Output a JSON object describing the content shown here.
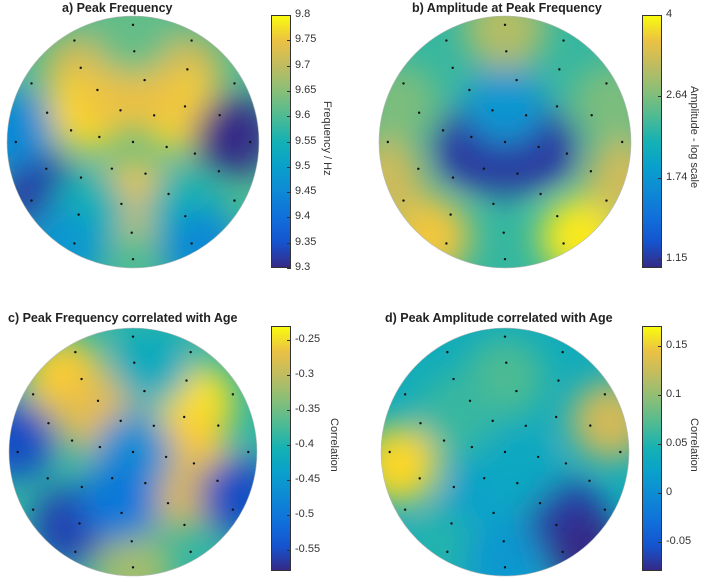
{
  "chart_data": [
    {
      "type": "heatmap",
      "title": "a) Peak Frequency",
      "colorbar_label": "Frequency / Hz",
      "colorbar_ticks": [
        "9.8",
        "9.75",
        "9.7",
        "9.65",
        "9.6",
        "9.55",
        "9.5",
        "9.45",
        "9.4",
        "9.35",
        "9.3"
      ],
      "clim": [
        9.3,
        9.8
      ],
      "colormap": "parula",
      "blobs": [
        {
          "x": -0.4,
          "y": 0.55,
          "value": 9.72
        },
        {
          "x": 0.4,
          "y": 0.55,
          "value": 9.72
        },
        {
          "x": -0.35,
          "y": 0.25,
          "value": 9.78
        },
        {
          "x": 0.35,
          "y": 0.25,
          "value": 9.78
        },
        {
          "x": -0.1,
          "y": 0.4,
          "value": 9.75
        },
        {
          "x": 0.1,
          "y": 0.4,
          "value": 9.75
        },
        {
          "x": 0.0,
          "y": -0.45,
          "value": 9.76
        },
        {
          "x": 0.0,
          "y": 0.85,
          "value": 9.62
        },
        {
          "x": -0.75,
          "y": -0.4,
          "value": 9.32
        },
        {
          "x": 0.8,
          "y": 0.05,
          "value": 9.3
        },
        {
          "x": -0.95,
          "y": 0.1,
          "value": 9.45
        },
        {
          "x": -0.35,
          "y": -0.55,
          "value": 9.55
        },
        {
          "x": 0.4,
          "y": -0.55,
          "value": 9.55
        },
        {
          "x": 0.55,
          "y": -0.85,
          "value": 9.45
        },
        {
          "x": -0.55,
          "y": -0.85,
          "value": 9.48
        }
      ]
    },
    {
      "type": "heatmap",
      "title": "b) Amplitude at Peak Frequency",
      "colorbar_label": "Amplitude - log scale",
      "colorbar_ticks": [
        "4",
        "2.64",
        "1.74",
        "1.15"
      ],
      "clim": [
        1.1,
        4.0
      ],
      "log_scale": true,
      "colormap": "parula",
      "blobs": [
        {
          "x": -0.25,
          "y": -0.05,
          "value": 1.15
        },
        {
          "x": 0.0,
          "y": -0.1,
          "value": 1.15
        },
        {
          "x": 0.25,
          "y": -0.05,
          "value": 1.15
        },
        {
          "x": 0.0,
          "y": 0.3,
          "value": 1.74
        },
        {
          "x": -0.85,
          "y": 0.3,
          "value": 2.64
        },
        {
          "x": 0.85,
          "y": 0.3,
          "value": 2.64
        },
        {
          "x": -0.6,
          "y": -0.75,
          "value": 3.6
        },
        {
          "x": 0.6,
          "y": -0.75,
          "value": 3.9
        },
        {
          "x": 0.0,
          "y": 0.9,
          "value": 3.0
        },
        {
          "x": -0.95,
          "y": -0.3,
          "value": 3.2
        },
        {
          "x": 0.95,
          "y": -0.3,
          "value": 3.2
        }
      ]
    },
    {
      "type": "heatmap",
      "title": "c) Peak Frequency correlated with Age",
      "colorbar_label": "Correlation",
      "colorbar_ticks": [
        "-0.25",
        "-0.3",
        "-0.35",
        "-0.4",
        "-0.45",
        "-0.5",
        "-0.55"
      ],
      "clim": [
        -0.58,
        -0.23
      ],
      "colormap": "parula",
      "blobs": [
        {
          "x": -0.55,
          "y": 0.6,
          "value": -0.25
        },
        {
          "x": -0.3,
          "y": 0.3,
          "value": -0.27
        },
        {
          "x": 0.5,
          "y": 0.4,
          "value": -0.24
        },
        {
          "x": 0.45,
          "y": 0.0,
          "value": -0.25
        },
        {
          "x": 0.4,
          "y": -0.3,
          "value": -0.28
        },
        {
          "x": -0.5,
          "y": -0.6,
          "value": -0.56
        },
        {
          "x": -0.95,
          "y": 0.1,
          "value": -0.55
        },
        {
          "x": 0.85,
          "y": -0.35,
          "value": -0.55
        },
        {
          "x": 0.0,
          "y": 0.0,
          "value": -0.47
        },
        {
          "x": 0.0,
          "y": -0.95,
          "value": -0.32
        },
        {
          "x": 0.15,
          "y": 0.7,
          "value": -0.42
        },
        {
          "x": -0.1,
          "y": -0.4,
          "value": -0.5
        }
      ]
    },
    {
      "type": "heatmap",
      "title": "d) Peak Amplitude correlated with Age",
      "colorbar_label": "Correlation",
      "colorbar_ticks": [
        "0.15",
        "0.1",
        "0.05",
        "0",
        "-0.05"
      ],
      "clim": [
        -0.08,
        0.17
      ],
      "colormap": "parula",
      "blobs": [
        {
          "x": -0.85,
          "y": -0.1,
          "value": 0.16
        },
        {
          "x": 0.85,
          "y": 0.25,
          "value": 0.13
        },
        {
          "x": 0.5,
          "y": -0.55,
          "value": -0.07
        },
        {
          "x": 0.65,
          "y": -0.8,
          "value": -0.08
        },
        {
          "x": -0.2,
          "y": -0.4,
          "value": 0.02
        },
        {
          "x": 0.1,
          "y": -0.15,
          "value": 0.03
        },
        {
          "x": 0.0,
          "y": 0.6,
          "value": 0.07
        },
        {
          "x": -0.4,
          "y": 0.3,
          "value": 0.06
        },
        {
          "x": -0.5,
          "y": -0.8,
          "value": 0.05
        },
        {
          "x": 0.0,
          "y": -0.9,
          "value": 0.01
        }
      ]
    }
  ]
}
